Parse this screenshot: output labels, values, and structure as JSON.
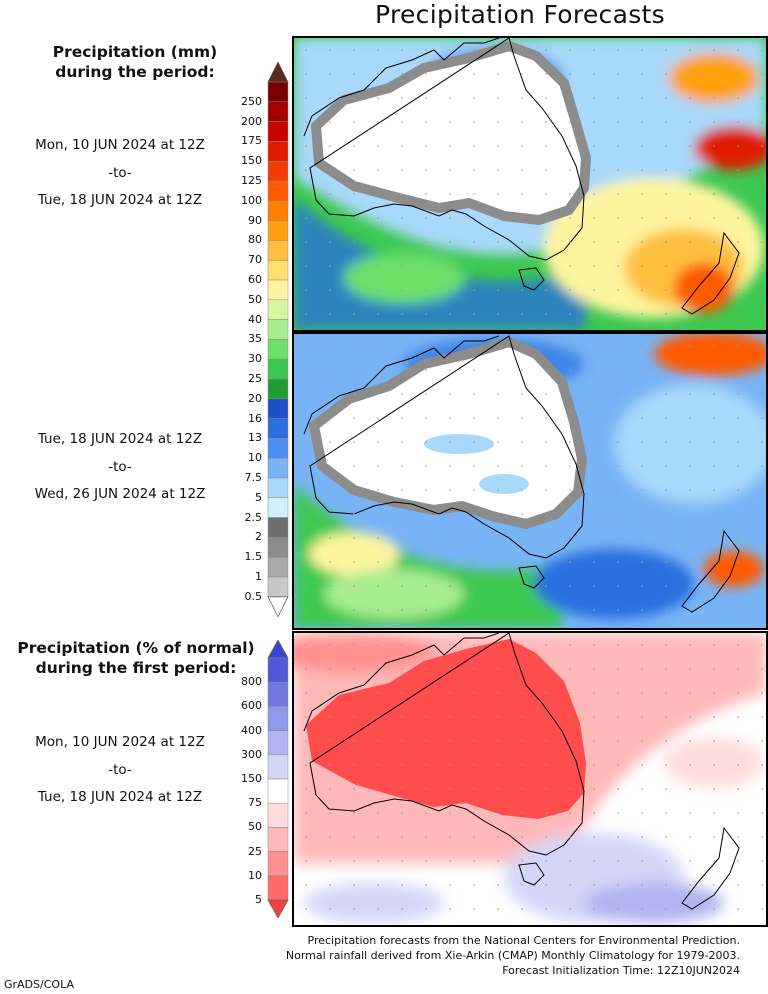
{
  "title": "Precipitation Forecasts",
  "amount_legend": {
    "heading_line1": "Precipitation (mm)",
    "heading_line2": "during the period:",
    "levels": [
      {
        "label": "250",
        "color": "#7a0000"
      },
      {
        "label": "200",
        "color": "#a50000"
      },
      {
        "label": "175",
        "color": "#c80000"
      },
      {
        "label": "150",
        "color": "#e01a00"
      },
      {
        "label": "125",
        "color": "#f03c00"
      },
      {
        "label": "100",
        "color": "#ff5a00"
      },
      {
        "label": "90",
        "color": "#ff8000"
      },
      {
        "label": "80",
        "color": "#ffa010"
      },
      {
        "label": "70",
        "color": "#ffc040"
      },
      {
        "label": "60",
        "color": "#ffe070"
      },
      {
        "label": "50",
        "color": "#fff5a0"
      },
      {
        "label": "40",
        "color": "#d8f5a0"
      },
      {
        "label": "35",
        "color": "#a8ec90"
      },
      {
        "label": "30",
        "color": "#6ee06a"
      },
      {
        "label": "25",
        "color": "#3cc850"
      },
      {
        "label": "20",
        "color": "#1e9e32"
      },
      {
        "label": "16",
        "color": "#1e50c8"
      },
      {
        "label": "13",
        "color": "#2a6ee0"
      },
      {
        "label": "10",
        "color": "#4a90f0"
      },
      {
        "label": "7.5",
        "color": "#78b4f5"
      },
      {
        "label": "5",
        "color": "#a8d8fa"
      },
      {
        "label": "2.5",
        "color": "#d0f0ff"
      },
      {
        "label": "2",
        "color": "#6e6e6e"
      },
      {
        "label": "1.5",
        "color": "#8c8c8c"
      },
      {
        "label": "1",
        "color": "#aaaaaa"
      },
      {
        "label": "0.5",
        "color": "#c8c8c8"
      }
    ],
    "top_arrow_color": "#5a2a1a",
    "bottom_arrow_color": "#ffffff"
  },
  "period1": {
    "start": "Mon, 10 JUN 2024 at 12Z",
    "sep": "-to-",
    "end": "Tue, 18 JUN 2024 at 12Z"
  },
  "period2": {
    "start": "Tue, 18 JUN 2024 at 12Z",
    "sep": "-to-",
    "end": "Wed, 26 JUN 2024 at 12Z"
  },
  "percent_legend": {
    "heading_line1": "Precipitation (% of normal)",
    "heading_line2": "during the first period:",
    "levels": [
      {
        "label": "800",
        "color": "#5058d8"
      },
      {
        "label": "600",
        "color": "#7078e0"
      },
      {
        "label": "400",
        "color": "#9098e8"
      },
      {
        "label": "300",
        "color": "#b0b4f0"
      },
      {
        "label": "150",
        "color": "#d4d6f8"
      },
      {
        "label": "75",
        "color": "#ffffff"
      },
      {
        "label": "50",
        "color": "#ffdcdc"
      },
      {
        "label": "25",
        "color": "#ffb8b8"
      },
      {
        "label": "10",
        "color": "#ff9090"
      },
      {
        "label": "5",
        "color": "#ff6a6a"
      }
    ],
    "top_arrow_color": "#3a44d0",
    "bottom_arrow_color": "#f04040"
  },
  "period3": {
    "start": "Mon, 10 JUN 2024 at 12Z",
    "sep": "-to-",
    "end": "Tue, 18 JUN 2024 at 12Z"
  },
  "footer": {
    "line1": "Precipitation forecasts from the National Centers for Environmental Prediction.",
    "line2": "Normal rainfall derived from Xie-Arkin (CMAP) Monthly Climatology for 1979-2003.",
    "line3": "Forecast Initialization Time: 12Z10JUN2024"
  },
  "credit": "GrADS/COLA"
}
